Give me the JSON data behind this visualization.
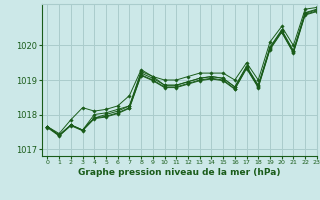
{
  "title": "Graphe pression niveau de la mer (hPa)",
  "background_color": "#cce8e8",
  "grid_color": "#aacccc",
  "line_color": "#1a5c1a",
  "marker_color": "#1a5c1a",
  "xlim": [
    -0.5,
    23
  ],
  "ylim": [
    1016.8,
    1021.2
  ],
  "yticks": [
    1017,
    1018,
    1019,
    1020
  ],
  "xticks": [
    0,
    1,
    2,
    3,
    4,
    5,
    6,
    7,
    8,
    9,
    10,
    11,
    12,
    13,
    14,
    15,
    16,
    17,
    18,
    19,
    20,
    21,
    22,
    23
  ],
  "series": [
    [
      1017.65,
      1017.45,
      1017.85,
      1018.2,
      1018.1,
      1018.15,
      1018.25,
      1018.55,
      1019.3,
      1019.1,
      1019.0,
      1019.0,
      1019.1,
      1019.2,
      1019.2,
      1019.2,
      1019.0,
      1019.5,
      1019.0,
      1020.1,
      1020.55,
      1020.0,
      1021.05,
      1021.1
    ],
    [
      1017.65,
      1017.4,
      1017.7,
      1017.55,
      1018.0,
      1018.05,
      1018.15,
      1018.25,
      1019.25,
      1019.1,
      1018.85,
      1018.85,
      1018.95,
      1019.05,
      1019.1,
      1019.05,
      1018.8,
      1019.4,
      1018.85,
      1019.95,
      1020.45,
      1019.85,
      1020.95,
      1021.05
    ],
    [
      1017.65,
      1017.4,
      1017.7,
      1017.55,
      1017.9,
      1018.0,
      1018.1,
      1018.25,
      1019.2,
      1019.05,
      1018.85,
      1018.85,
      1018.95,
      1019.05,
      1019.1,
      1019.05,
      1018.8,
      1019.38,
      1018.83,
      1019.93,
      1020.43,
      1019.83,
      1020.93,
      1021.03
    ],
    [
      1017.65,
      1017.4,
      1017.7,
      1017.55,
      1017.9,
      1017.95,
      1018.05,
      1018.2,
      1019.15,
      1019.0,
      1018.8,
      1018.8,
      1018.9,
      1019.0,
      1019.05,
      1019.0,
      1018.75,
      1019.35,
      1018.8,
      1019.9,
      1020.4,
      1019.8,
      1020.9,
      1021.0
    ],
    [
      1017.62,
      1017.38,
      1017.68,
      1017.53,
      1017.88,
      1017.93,
      1018.03,
      1018.18,
      1019.13,
      1018.98,
      1018.78,
      1018.78,
      1018.88,
      1018.98,
      1019.03,
      1018.98,
      1018.73,
      1019.33,
      1018.78,
      1019.88,
      1020.38,
      1019.78,
      1020.88,
      1020.98
    ]
  ]
}
